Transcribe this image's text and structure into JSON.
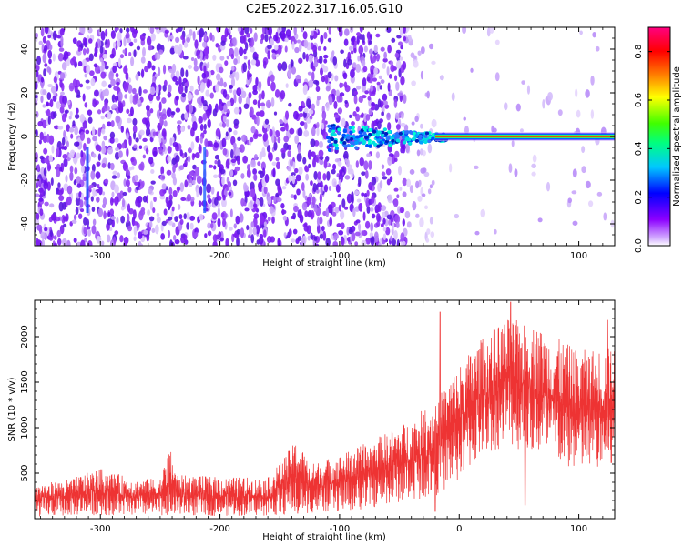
{
  "title": "C2E5.2022.317.16.05.G10",
  "colors": {
    "snr_line": "#ee3333",
    "spectrogram_low": "#7a1cf0",
    "colormap": [
      "#ffffff",
      "#8c00ff",
      "#0000ff",
      "#00ffff",
      "#00ff00",
      "#ffff00",
      "#ff8000",
      "#ff0000",
      "#ff0080"
    ]
  },
  "chart_data": [
    {
      "type": "heatmap",
      "xlabel": "Height of straight line (km)",
      "ylabel": "Frequency (Hz)",
      "xlim": [
        -355,
        130
      ],
      "ylim": [
        -50,
        50
      ],
      "x_ticks": [
        "-300",
        "-200",
        "-100",
        "0",
        "100"
      ],
      "x_tick_values": [
        -300,
        -200,
        -100,
        0,
        100
      ],
      "y_ticks": [
        "-40",
        "-20",
        "0",
        "20",
        "40"
      ],
      "y_tick_values": [
        -40,
        -20,
        0,
        20,
        40
      ],
      "description_features": {
        "noise_extent_km": [
          -355,
          -45
        ],
        "sparse_noise_extent_km": [
          -45,
          130
        ],
        "signal_onset_km": -110,
        "strong_line_from_km": -20,
        "line_frequency_hz": 0
      },
      "colorbar": {
        "label": "Normalized spectral amplitude",
        "range": [
          0.0,
          0.9
        ],
        "ticks": [
          "0.0",
          "0.2",
          "0.4",
          "0.6",
          "0.8"
        ],
        "tick_values": [
          0.0,
          0.2,
          0.4,
          0.6,
          0.8
        ]
      }
    },
    {
      "type": "line",
      "xlabel": "Height of straight line (km)",
      "ylabel": "SNR (10 * v/v)",
      "xlim": [
        -355,
        130
      ],
      "ylim": [
        0,
        2400
      ],
      "x_ticks": [
        "-300",
        "-200",
        "-100",
        "0",
        "100"
      ],
      "x_tick_values": [
        -300,
        -200,
        -100,
        0,
        100
      ],
      "y_ticks": [
        "500",
        "1000",
        "1500",
        "2000"
      ],
      "y_tick_values": [
        500,
        1000,
        1500,
        2000
      ],
      "series": [
        {
          "envelope": [
            {
              "x": -355,
              "low": 20,
              "high": 380
            },
            {
              "x": -330,
              "low": 30,
              "high": 420
            },
            {
              "x": -300,
              "low": 40,
              "high": 550
            },
            {
              "x": -270,
              "low": 30,
              "high": 430
            },
            {
              "x": -250,
              "low": 30,
              "high": 450
            },
            {
              "x": -242,
              "low": 40,
              "high": 780
            },
            {
              "x": -235,
              "low": 30,
              "high": 480
            },
            {
              "x": -200,
              "low": 30,
              "high": 460
            },
            {
              "x": -160,
              "low": 30,
              "high": 450
            },
            {
              "x": -135,
              "low": 40,
              "high": 880
            },
            {
              "x": -125,
              "low": 60,
              "high": 600
            },
            {
              "x": -100,
              "low": 80,
              "high": 700
            },
            {
              "x": -80,
              "low": 100,
              "high": 820
            },
            {
              "x": -60,
              "low": 150,
              "high": 950
            },
            {
              "x": -40,
              "low": 200,
              "high": 1100
            },
            {
              "x": -20,
              "low": 250,
              "high": 1300
            },
            {
              "x": 0,
              "low": 400,
              "high": 1700
            },
            {
              "x": 20,
              "low": 700,
              "high": 2000
            },
            {
              "x": 40,
              "low": 800,
              "high": 2200
            },
            {
              "x": 60,
              "low": 700,
              "high": 2150
            },
            {
              "x": 80,
              "low": 600,
              "high": 2000
            },
            {
              "x": 100,
              "low": 500,
              "high": 1850
            },
            {
              "x": 130,
              "low": 500,
              "high": 1900
            }
          ],
          "spikes": [
            {
              "x": -243,
              "value": 780
            },
            {
              "x": -135,
              "value": 880
            },
            {
              "x": -16,
              "value": 2270
            },
            {
              "x": 43,
              "value": 2380
            },
            {
              "x": 124,
              "value": 2180
            }
          ],
          "dips": [
            {
              "x": -243,
              "value": 80
            },
            {
              "x": -135,
              "value": 60
            },
            {
              "x": -20,
              "value": 80
            },
            {
              "x": 55,
              "value": 150
            }
          ]
        }
      ]
    }
  ]
}
